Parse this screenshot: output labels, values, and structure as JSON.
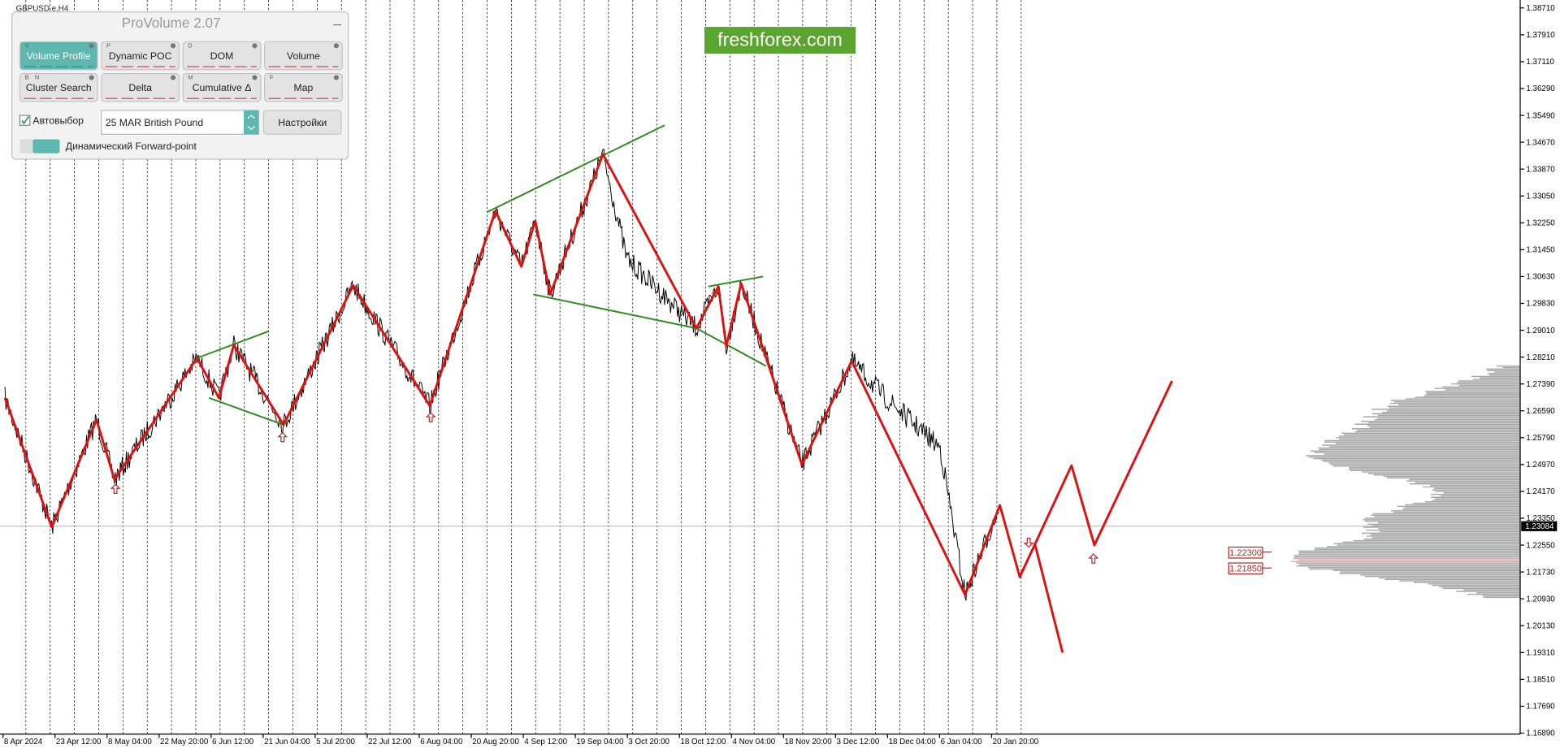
{
  "window": {
    "symbol": "GBPUSD.e,H4"
  },
  "panel": {
    "title": "ProVolume 2.07",
    "buttons": [
      {
        "label": "Volume Profile",
        "keys": [
          "V"
        ]
      },
      {
        "label": "Dynamic POC",
        "keys": [
          "P"
        ]
      },
      {
        "label": "DOM",
        "keys": [
          "D"
        ]
      },
      {
        "label": "Volume",
        "keys": []
      },
      {
        "label": "Cluster Search",
        "keys": [
          "B",
          "N"
        ]
      },
      {
        "label": "Delta",
        "keys": []
      },
      {
        "label": "Cumulative Δ",
        "keys": [
          "M"
        ]
      },
      {
        "label": "Map",
        "keys": [
          "F"
        ]
      }
    ],
    "checkbox": "Автовыбор",
    "instrument": "25 MAR British Pound",
    "settings": "Настройки",
    "toggle": "Динамический Forward-point"
  },
  "watermark": "freshforex.com",
  "price_axis": [
    "1.38710",
    "1.37910",
    "1.37110",
    "1.36290",
    "1.35490",
    "1.34670",
    "1.33870",
    "1.33050",
    "1.32250",
    "1.31450",
    "1.30630",
    "1.29830",
    "1.29010",
    "1.28210",
    "1.27390",
    "1.26590",
    "1.25790",
    "1.24970",
    "1.24170",
    "1.23350",
    "1.22550",
    "1.21730",
    "1.20930",
    "1.20130",
    "1.19310",
    "1.18510",
    "1.17690",
    "1.16890"
  ],
  "time_axis": [
    "8 Apr 2024",
    "23 Apr 12:00",
    "8 May 04:00",
    "22 May 20:00",
    "6 Jun 12:00",
    "21 Jun 04:00",
    "5 Jul 20:00",
    "22 Jul 12:00",
    "6 Aug 04:00",
    "20 Aug 20:00",
    "4 Sep 12:00",
    "19 Sep 04:00",
    "3 Oct 20:00",
    "18 Oct 12:00",
    "4 Nov 04:00",
    "18 Nov 20:00",
    "3 Dec 12:00",
    "18 Dec 04:00",
    "6 Jan 04:00",
    "20 Jan 20:00"
  ],
  "current_price": "1.23084",
  "levels": [
    "1.22300",
    "1.21850"
  ]
}
